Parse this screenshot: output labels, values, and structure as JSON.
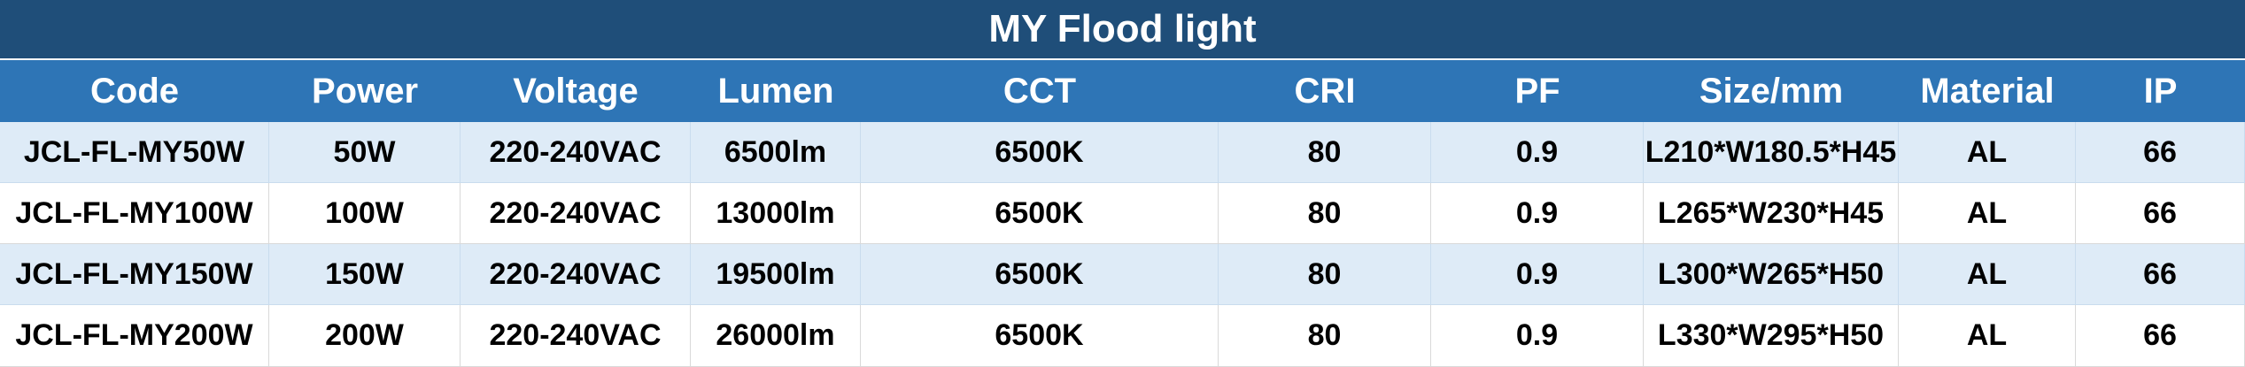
{
  "title": "MY Flood light",
  "headers": [
    "Code",
    "Power",
    "Voltage",
    "Lumen",
    "CCT",
    "CRI",
    "PF",
    "Size/mm",
    "Material",
    "IP"
  ],
  "rows": [
    [
      "JCL-FL-MY50W",
      "50W",
      "220-240VAC",
      "6500lm",
      "6500K",
      "80",
      "0.9",
      "L210*W180.5*H45",
      "AL",
      "66"
    ],
    [
      "JCL-FL-MY100W",
      "100W",
      "220-240VAC",
      "13000lm",
      "6500K",
      "80",
      "0.9",
      "L265*W230*H45",
      "AL",
      "66"
    ],
    [
      "JCL-FL-MY150W",
      "150W",
      "220-240VAC",
      "19500lm",
      "6500K",
      "80",
      "0.9",
      "L300*W265*H50",
      "AL",
      "66"
    ],
    [
      "JCL-FL-MY200W",
      "200W",
      "220-240VAC",
      "26000lm",
      "6500K",
      "80",
      "0.9",
      "L330*W295*H50",
      "AL",
      "66"
    ]
  ],
  "colors": {
    "title_bg": "#1f4e79",
    "header_bg": "#2e75b6",
    "row_shaded": "#deebf7",
    "row_plain": "#ffffff"
  }
}
